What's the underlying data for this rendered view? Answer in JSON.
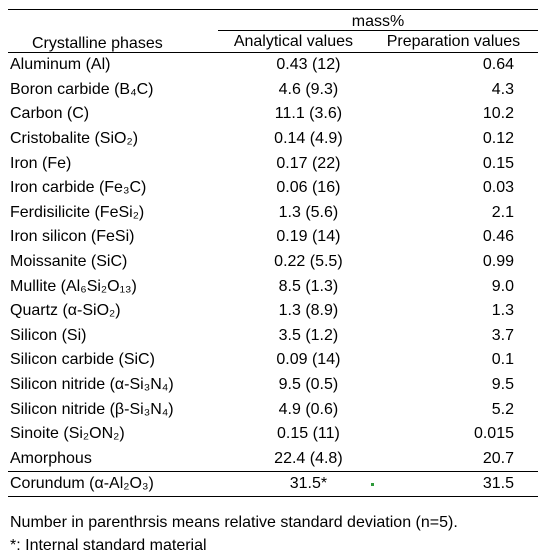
{
  "table": {
    "header": {
      "phase_label": "Crystalline phases",
      "group_label": "mass%",
      "analytical_label": "Analytical values",
      "preparation_label": "Preparation values"
    },
    "rows": [
      {
        "name": "Aluminum (Al)",
        "analytical": "0.43 (12)",
        "preparation": "0.64"
      },
      {
        "name": "Boron carbide (B₄C)",
        "analytical": "4.6 (9.3)",
        "preparation": "4.3"
      },
      {
        "name": "Carbon (C)",
        "analytical": "11.1 (3.6)",
        "preparation": "10.2"
      },
      {
        "name": "Cristobalite (SiO₂)",
        "analytical": "0.14 (4.9)",
        "preparation": "0.12"
      },
      {
        "name": "Iron (Fe)",
        "analytical": "0.17 (22)",
        "preparation": "0.15"
      },
      {
        "name": "Iron carbide (Fe₃C)",
        "analytical": "0.06 (16)",
        "preparation": "0.03"
      },
      {
        "name": "Ferdisilicite (FeSi₂)",
        "analytical": "1.3 (5.6)",
        "preparation": "2.1"
      },
      {
        "name": "Iron silicon (FeSi)",
        "analytical": "0.19 (14)",
        "preparation": "0.46"
      },
      {
        "name": "Moissanite (SiC)",
        "analytical": "0.22 (5.5)",
        "preparation": "0.99"
      },
      {
        "name": "Mullite (Al₆Si₂O₁₃)",
        "analytical": "8.5 (1.3)",
        "preparation": "9.0"
      },
      {
        "name": "Quartz (α-SiO₂)",
        "analytical": "1.3 (8.9)",
        "preparation": "1.3"
      },
      {
        "name": "Silicon (Si)",
        "analytical": "3.5 (1.2)",
        "preparation": "3.7"
      },
      {
        "name": "Silicon carbide (SiC)",
        "analytical": "0.09 (14)",
        "preparation": "0.1"
      },
      {
        "name": "Silicon nitride (α-Si₃N₄)",
        "analytical": "9.5 (0.5)",
        "preparation": "9.5"
      },
      {
        "name": "Silicon nitride (β-Si₃N₄)",
        "analytical": "4.9 (0.6)",
        "preparation": "5.2"
      },
      {
        "name": "Sinoite (Si₂ON₂)",
        "analytical": "0.15 (11)",
        "preparation": "0.015"
      },
      {
        "name": "Amorphous",
        "analytical": "22.4 (4.8)",
        "preparation": "20.7"
      }
    ],
    "corundum": {
      "name": "Corundum (α-Al₂O₃)",
      "analytical": "31.5*",
      "preparation": "31.5"
    }
  },
  "notes": {
    "line1": "Number in parenthrsis means relative standard deviation (n=5).",
    "line2": "*: Internal standard material"
  },
  "colors": {
    "text": "#000000",
    "rules": "#000000",
    "background": "#ffffff",
    "stray_mark": "#2e9a3a"
  }
}
